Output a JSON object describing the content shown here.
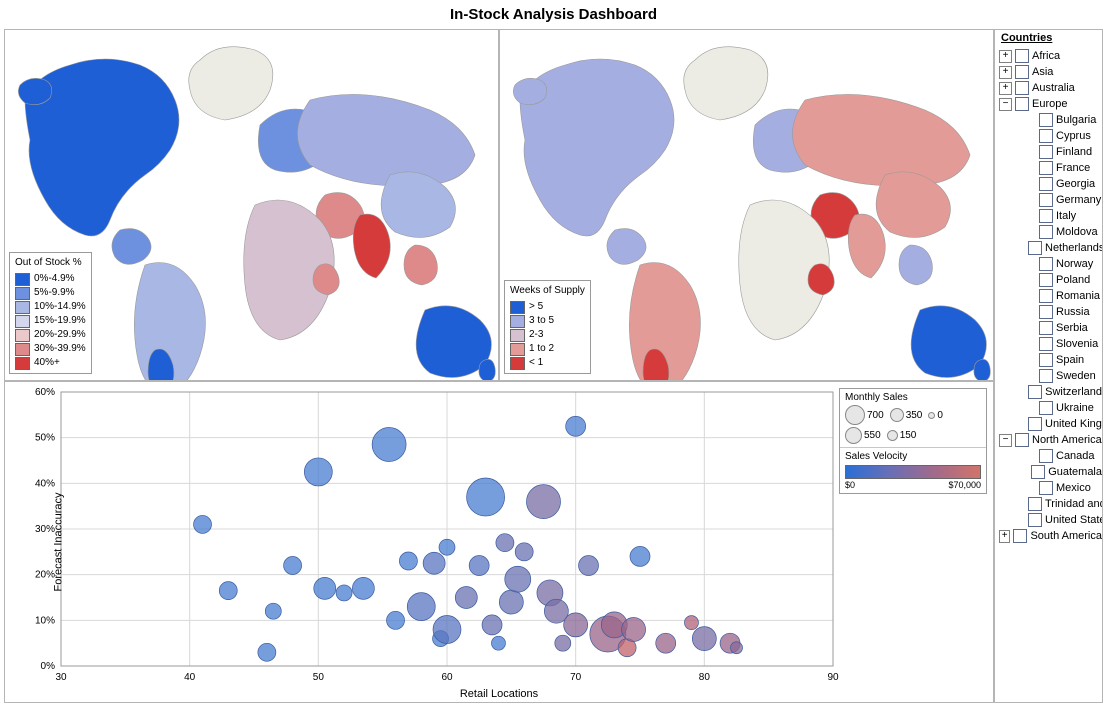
{
  "title": "In-Stock Analysis Dashboard",
  "map1": {
    "legend_title": "Out of Stock %",
    "legend": [
      {
        "label": "0%-4.9%",
        "color": "#1f5fd6"
      },
      {
        "label": "5%-9.9%",
        "color": "#6e91df"
      },
      {
        "label": "10%-14.9%",
        "color": "#a8b7e4"
      },
      {
        "label": "15%-19.9%",
        "color": "#d4d6ed"
      },
      {
        "label": "20%-29.9%",
        "color": "#ebc8ca"
      },
      {
        "label": "30%-39.9%",
        "color": "#de8a8a"
      },
      {
        "label": "40%+",
        "color": "#d63b3b"
      }
    ]
  },
  "map2": {
    "legend_title": "Weeks of Supply",
    "legend": [
      {
        "label": "> 5",
        "color": "#1f5fd6"
      },
      {
        "label": "3 to 5",
        "color": "#a4aee1"
      },
      {
        "label": "2-3",
        "color": "#d6c1d0"
      },
      {
        "label": "1 to 2",
        "color": "#e29b97"
      },
      {
        "label": "< 1",
        "color": "#d63b3b"
      }
    ]
  },
  "bubble": {
    "y_title": "Forecast Inaccuracy",
    "x_title": "Retail Locations",
    "x_ticks": [
      30,
      40,
      50,
      60,
      70,
      80,
      90
    ],
    "y_ticks": [
      "0%",
      "10%",
      "20%",
      "30%",
      "40%",
      "50%",
      "60%"
    ],
    "sales_legend_title": "Monthly Sales",
    "sales_sizes": [
      {
        "label": "700",
        "d": 18
      },
      {
        "label": "350",
        "d": 12
      },
      {
        "label": "0",
        "d": 5
      },
      {
        "label": "550",
        "d": 15
      },
      {
        "label": "150",
        "d": 9
      }
    ],
    "velocity_title": "Sales Velocity",
    "velocity_min": "$0",
    "velocity_max": "$70,000",
    "points": [
      {
        "x": 41,
        "y": 31,
        "r": 9,
        "c": "#4a7dd0"
      },
      {
        "x": 43,
        "y": 16.5,
        "r": 9,
        "c": "#4a7dd0"
      },
      {
        "x": 46,
        "y": 3,
        "r": 9,
        "c": "#4a7dd0"
      },
      {
        "x": 46.5,
        "y": 12,
        "r": 8,
        "c": "#4a7dd0"
      },
      {
        "x": 48,
        "y": 22,
        "r": 9,
        "c": "#4a7dd0"
      },
      {
        "x": 50,
        "y": 42.5,
        "r": 14,
        "c": "#4a7dd0"
      },
      {
        "x": 50.5,
        "y": 17,
        "r": 11,
        "c": "#4a7dd0"
      },
      {
        "x": 52,
        "y": 16,
        "r": 8,
        "c": "#4a7dd0"
      },
      {
        "x": 53.5,
        "y": 17,
        "r": 11,
        "c": "#4a7dd0"
      },
      {
        "x": 55.5,
        "y": 48.5,
        "r": 17,
        "c": "#4a7dd0"
      },
      {
        "x": 56,
        "y": 10,
        "r": 9,
        "c": "#4a7dd0"
      },
      {
        "x": 57,
        "y": 23,
        "r": 9,
        "c": "#4a7dd0"
      },
      {
        "x": 58,
        "y": 13,
        "r": 14,
        "c": "#5a75c0"
      },
      {
        "x": 59,
        "y": 22.5,
        "r": 11,
        "c": "#5a75c0"
      },
      {
        "x": 59.5,
        "y": 6,
        "r": 8,
        "c": "#4a7dd0"
      },
      {
        "x": 60,
        "y": 8,
        "r": 14,
        "c": "#5a75c0"
      },
      {
        "x": 60,
        "y": 26,
        "r": 8,
        "c": "#4a7dd0"
      },
      {
        "x": 61.5,
        "y": 15,
        "r": 11,
        "c": "#6a72b2"
      },
      {
        "x": 62.5,
        "y": 22,
        "r": 10,
        "c": "#5a75c0"
      },
      {
        "x": 63,
        "y": 37,
        "r": 19,
        "c": "#4a7dd0"
      },
      {
        "x": 63.5,
        "y": 9,
        "r": 10,
        "c": "#6a72b2"
      },
      {
        "x": 64,
        "y": 5,
        "r": 7,
        "c": "#4a7dd0"
      },
      {
        "x": 64.5,
        "y": 27,
        "r": 9,
        "c": "#6a72b2"
      },
      {
        "x": 65,
        "y": 14,
        "r": 12,
        "c": "#6a72b2"
      },
      {
        "x": 65.5,
        "y": 19,
        "r": 13,
        "c": "#6a72b2"
      },
      {
        "x": 66,
        "y": 25,
        "r": 9,
        "c": "#6a72b2"
      },
      {
        "x": 67.5,
        "y": 36,
        "r": 17,
        "c": "#7a6da4"
      },
      {
        "x": 68,
        "y": 16,
        "r": 13,
        "c": "#7a6da4"
      },
      {
        "x": 68.5,
        "y": 12,
        "r": 12,
        "c": "#7a6da4"
      },
      {
        "x": 69,
        "y": 5,
        "r": 8,
        "c": "#7a6da4"
      },
      {
        "x": 70,
        "y": 9,
        "r": 12,
        "c": "#8a6896"
      },
      {
        "x": 70,
        "y": 52.5,
        "r": 10,
        "c": "#4a7dd0"
      },
      {
        "x": 71,
        "y": 22,
        "r": 10,
        "c": "#6a72b2"
      },
      {
        "x": 72.5,
        "y": 7,
        "r": 18,
        "c": "#9a6488"
      },
      {
        "x": 73,
        "y": 9,
        "r": 13,
        "c": "#9a6488"
      },
      {
        "x": 74,
        "y": 4,
        "r": 9,
        "c": "#c0636a"
      },
      {
        "x": 74.5,
        "y": 8,
        "r": 12,
        "c": "#9a6488"
      },
      {
        "x": 75,
        "y": 24,
        "r": 10,
        "c": "#4a7dd0"
      },
      {
        "x": 77,
        "y": 5,
        "r": 10,
        "c": "#9a6488"
      },
      {
        "x": 79,
        "y": 9.5,
        "r": 7,
        "c": "#b0637a"
      },
      {
        "x": 80,
        "y": 6,
        "r": 12,
        "c": "#7a6da4"
      },
      {
        "x": 82,
        "y": 5,
        "r": 10,
        "c": "#9a6488"
      },
      {
        "x": 82.5,
        "y": 4,
        "r": 6,
        "c": "#8a6896"
      }
    ]
  },
  "tree": {
    "title": "Countries",
    "nodes": [
      {
        "label": "Africa",
        "level": 1,
        "expand": "plus"
      },
      {
        "label": "Asia",
        "level": 1,
        "expand": "plus"
      },
      {
        "label": "Australia",
        "level": 1,
        "expand": "plus"
      },
      {
        "label": "Europe",
        "level": 1,
        "expand": "minus"
      },
      {
        "label": "Bulgaria",
        "level": 2
      },
      {
        "label": "Cyprus",
        "level": 2
      },
      {
        "label": "Finland",
        "level": 2
      },
      {
        "label": "France",
        "level": 2
      },
      {
        "label": "Georgia",
        "level": 2
      },
      {
        "label": "Germany",
        "level": 2
      },
      {
        "label": "Italy",
        "level": 2
      },
      {
        "label": "Moldova",
        "level": 2
      },
      {
        "label": "Netherlands",
        "level": 2
      },
      {
        "label": "Norway",
        "level": 2
      },
      {
        "label": "Poland",
        "level": 2
      },
      {
        "label": "Romania",
        "level": 2
      },
      {
        "label": "Russia",
        "level": 2
      },
      {
        "label": "Serbia",
        "level": 2
      },
      {
        "label": "Slovenia",
        "level": 2
      },
      {
        "label": "Spain",
        "level": 2
      },
      {
        "label": "Sweden",
        "level": 2
      },
      {
        "label": "Switzerland",
        "level": 2
      },
      {
        "label": "Ukraine",
        "level": 2
      },
      {
        "label": "United Kingdom",
        "level": 2
      },
      {
        "label": "North America",
        "level": 1,
        "expand": "minus"
      },
      {
        "label": "Canada",
        "level": 2
      },
      {
        "label": "Guatemala",
        "level": 2
      },
      {
        "label": "Mexico",
        "level": 2
      },
      {
        "label": "Trinidad and Tobago",
        "level": 2
      },
      {
        "label": "United States",
        "level": 2
      },
      {
        "label": "South America",
        "level": 1,
        "expand": "plus"
      }
    ]
  }
}
